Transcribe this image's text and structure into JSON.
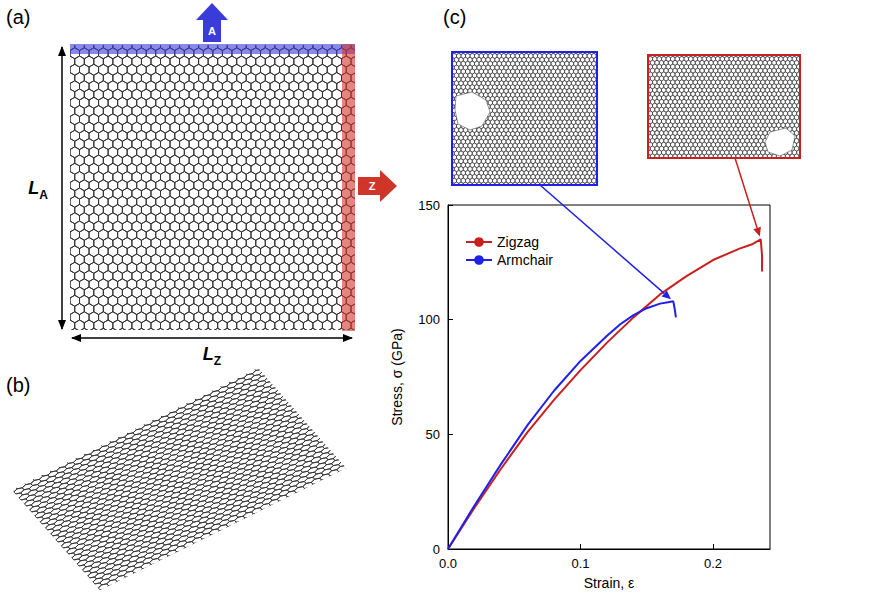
{
  "chart_data": {
    "type": "line",
    "xlabel": "Strain, ε",
    "ylabel": "Stress, σ (GPa)",
    "xlim": [
      0,
      0.243
    ],
    "ylim": [
      0,
      150
    ],
    "xticks": [
      {
        "value": 0,
        "label": "0.0"
      },
      0.1,
      0.2
    ],
    "yticks": [
      0,
      50,
      100,
      150
    ],
    "legend": "upper left",
    "series": [
      {
        "name": "Zigzag",
        "color": "#c8201e",
        "x": [
          0,
          0.02,
          0.04,
          0.06,
          0.08,
          0.1,
          0.12,
          0.14,
          0.16,
          0.18,
          0.2,
          0.22,
          0.23,
          0.236,
          0.237,
          0.237
        ],
        "values": [
          0,
          18,
          35,
          51,
          65,
          78,
          90,
          101,
          111,
          119,
          126,
          131,
          133,
          135,
          128,
          121
        ],
        "fracture": {
          "x": 0.236,
          "y": 135
        }
      },
      {
        "name": "Armchair",
        "color": "#2020e8",
        "x": [
          0,
          0.02,
          0.04,
          0.06,
          0.08,
          0.1,
          0.12,
          0.13,
          0.14,
          0.15,
          0.16,
          0.165,
          0.17,
          0.171,
          0.172
        ],
        "values": [
          0,
          19,
          37,
          54,
          69,
          82,
          93,
          98,
          102,
          105,
          107,
          107.5,
          108,
          105,
          101
        ],
        "fracture": {
          "x": 0.17,
          "y": 108
        }
      }
    ]
  },
  "figure": {
    "panel_a": {
      "label": "(a)",
      "load_arrows": [
        {
          "label": "A",
          "color": "#3b3bd9"
        },
        {
          "label": "Z",
          "color": "#d0352a"
        }
      ],
      "dimensions": [
        {
          "text": "L",
          "subscript": "A"
        },
        {
          "text": "L",
          "subscript": "Z"
        }
      ]
    },
    "panel_b": {
      "label": "(b)"
    },
    "panel_c": {
      "label": "(c)"
    }
  }
}
